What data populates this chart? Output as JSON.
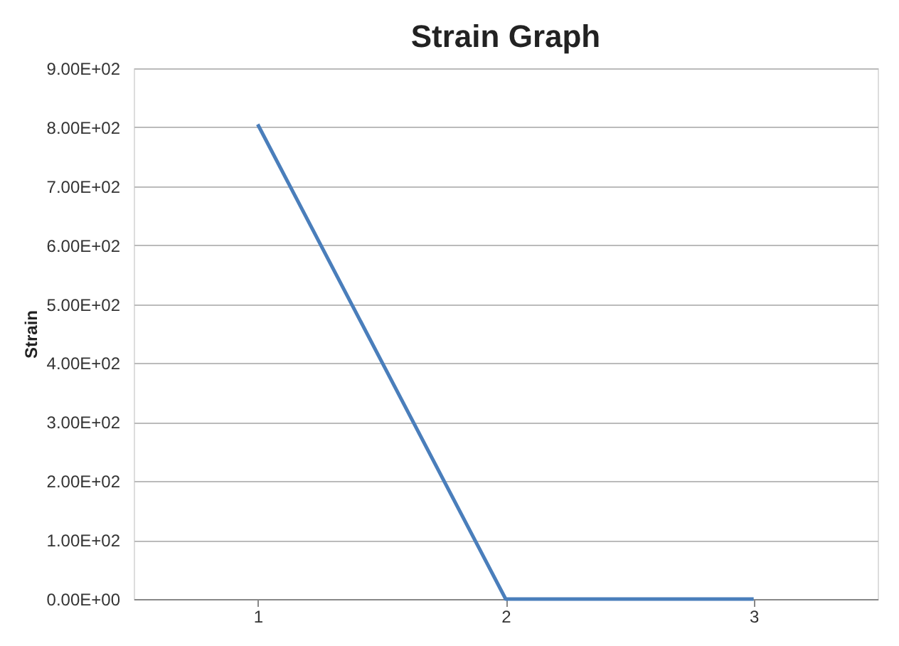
{
  "chart_data": {
    "type": "line",
    "title": "Strain Graph",
    "ylabel": "Strain",
    "categories": [
      "1",
      "2",
      "3"
    ],
    "series": [
      {
        "color": "#4a7ebb",
        "values": [
          805,
          0,
          0
        ]
      }
    ],
    "ylim": [
      0,
      900
    ],
    "yticks": [
      {
        "value": 0,
        "label": "0.00E+00"
      },
      {
        "value": 100,
        "label": "1.00E+02"
      },
      {
        "value": 200,
        "label": "2.00E+02"
      },
      {
        "value": 300,
        "label": "3.00E+02"
      },
      {
        "value": 400,
        "label": "4.00E+02"
      },
      {
        "value": 500,
        "label": "5.00E+02"
      },
      {
        "value": 600,
        "label": "6.00E+02"
      },
      {
        "value": 700,
        "label": "7.00E+02"
      },
      {
        "value": 800,
        "label": "8.00E+02"
      },
      {
        "value": 900,
        "label": "9.00E+02"
      }
    ],
    "grid": "y",
    "marker": "none",
    "line_style": "solid"
  }
}
